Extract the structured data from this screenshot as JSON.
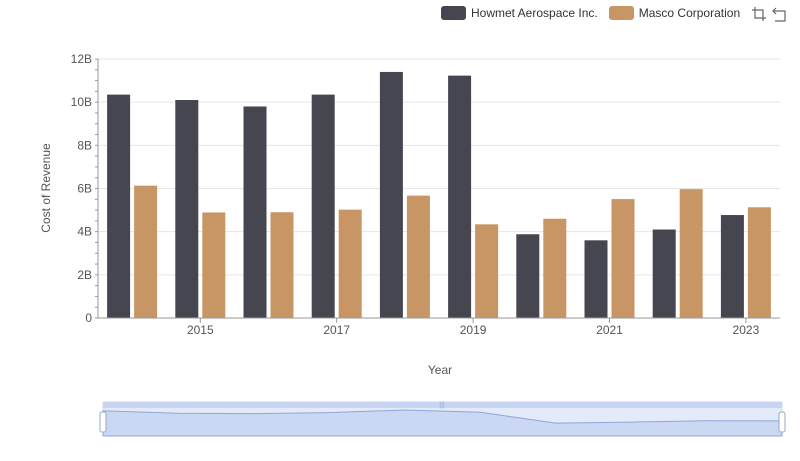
{
  "legend": {
    "items": [
      {
        "name": "Howmet Aerospace Inc.",
        "color": "#464651"
      },
      {
        "name": "Masco Corporation",
        "color": "#c89664"
      }
    ]
  },
  "toolbox": {
    "icons": [
      "zoom-icon",
      "restore-icon"
    ]
  },
  "chart_data": {
    "type": "bar",
    "xlabel": "Year",
    "ylabel": "Cost of Revenue",
    "categories": [
      "2014",
      "2015",
      "2016",
      "2017",
      "2018",
      "2019",
      "2020",
      "2021",
      "2022",
      "2023"
    ],
    "x_tick_labels": [
      "2015",
      "2017",
      "2019",
      "2021",
      "2023"
    ],
    "y_tick_labels": [
      "0",
      "2B",
      "4B",
      "6B",
      "8B",
      "10B",
      "12B"
    ],
    "ylim": [
      0,
      12000000000
    ],
    "grid": true,
    "legend_position": "top-right",
    "series": [
      {
        "name": "Howmet Aerospace Inc.",
        "color": "#464651",
        "values": [
          10350000000,
          10100000000,
          9800000000,
          10350000000,
          11400000000,
          11230000000,
          3880000000,
          3600000000,
          4100000000,
          4770000000
        ]
      },
      {
        "name": "Masco Corporation",
        "color": "#c89664",
        "values": [
          6130000000,
          4890000000,
          4900000000,
          5020000000,
          5670000000,
          4340000000,
          4600000000,
          5510000000,
          5970000000,
          5130000000
        ]
      }
    ]
  }
}
